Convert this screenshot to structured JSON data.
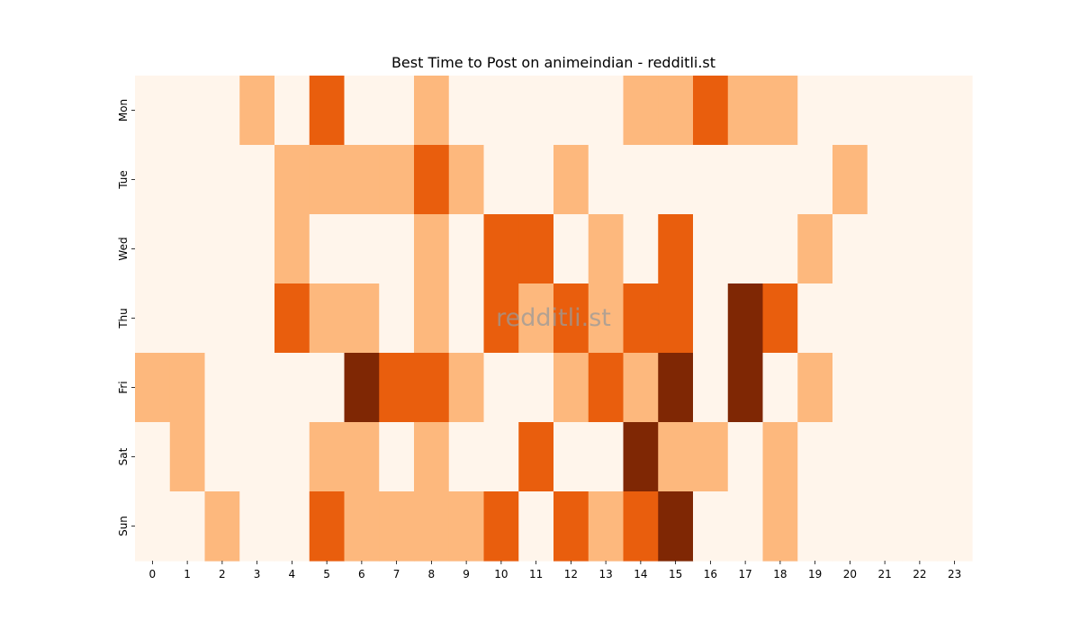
{
  "chart_data": {
    "type": "heatmap",
    "title": "Best Time to Post on animeindian - redditli.st",
    "watermark": "redditli.st",
    "x": [
      "0",
      "1",
      "2",
      "3",
      "4",
      "5",
      "6",
      "7",
      "8",
      "9",
      "10",
      "11",
      "12",
      "13",
      "14",
      "15",
      "16",
      "17",
      "18",
      "19",
      "20",
      "21",
      "22",
      "23"
    ],
    "y": [
      "Mon",
      "Tue",
      "Wed",
      "Thu",
      "Fri",
      "Sat",
      "Sun"
    ],
    "values": [
      [
        0,
        0,
        0,
        1,
        0,
        2,
        0,
        0,
        1,
        0,
        0,
        0,
        0,
        0,
        1,
        1,
        2,
        1,
        1,
        0,
        0,
        0,
        0,
        0
      ],
      [
        0,
        0,
        0,
        0,
        1,
        1,
        1,
        1,
        2,
        1,
        0,
        0,
        1,
        0,
        0,
        0,
        0,
        0,
        0,
        0,
        1,
        0,
        0,
        0
      ],
      [
        0,
        0,
        0,
        0,
        1,
        0,
        0,
        0,
        1,
        0,
        2,
        2,
        0,
        1,
        0,
        2,
        0,
        0,
        0,
        1,
        0,
        0,
        0,
        0
      ],
      [
        0,
        0,
        0,
        0,
        2,
        1,
        1,
        0,
        1,
        0,
        2,
        1,
        2,
        1,
        2,
        2,
        0,
        3,
        2,
        0,
        0,
        0,
        0,
        0
      ],
      [
        1,
        1,
        0,
        0,
        0,
        0,
        3,
        2,
        2,
        1,
        0,
        0,
        1,
        2,
        1,
        3,
        0,
        3,
        0,
        1,
        0,
        0,
        0,
        0
      ],
      [
        0,
        1,
        0,
        0,
        0,
        1,
        1,
        0,
        1,
        0,
        0,
        2,
        0,
        0,
        3,
        1,
        1,
        0,
        1,
        0,
        0,
        0,
        0,
        0
      ],
      [
        0,
        0,
        1,
        0,
        0,
        2,
        1,
        1,
        1,
        1,
        2,
        0,
        2,
        1,
        2,
        3,
        0,
        0,
        1,
        0,
        0,
        0,
        0,
        0
      ]
    ],
    "colors": [
      "#fff5eb",
      "#fdb87d",
      "#e95e0d",
      "#7f2704"
    ],
    "legend": "none",
    "grid": false
  }
}
